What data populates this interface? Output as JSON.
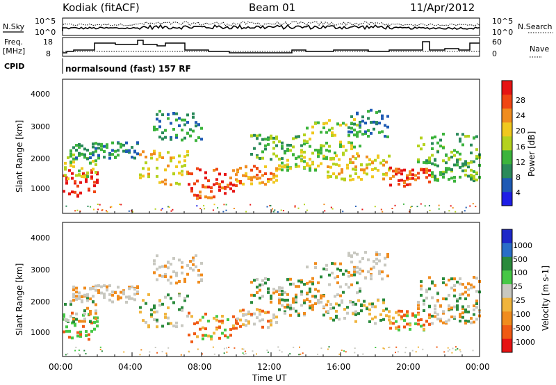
{
  "header": {
    "station": "Kodiak (fitACF)",
    "beam": "Beam 01",
    "date": "11/Apr/2012"
  },
  "noise_panel": {
    "left_label": "N.Sky",
    "right_label": "N.Search",
    "left_ticks": [
      "10^5",
      "10^0"
    ],
    "right_ticks": [
      "10^5",
      "10^0"
    ]
  },
  "freq_panel": {
    "left_label_line1": "Freq.",
    "left_label_line2": "[MHz]",
    "right_label": "Nave",
    "left_ticks": [
      "18",
      "8"
    ],
    "right_ticks": [
      "60",
      "0"
    ]
  },
  "cpid": {
    "label": "CPID",
    "value": "normalsound (fast) 157 RF"
  },
  "chart_data": [
    {
      "type": "heatmap",
      "name": "power",
      "ylabel": "Slant Range [km]",
      "yticks": [
        "4000",
        "3000",
        "2000",
        "1000"
      ],
      "colorbar_label": "Power [dB]",
      "colorbar_ticks": [
        "28",
        "24",
        "20",
        "16",
        "12",
        "8",
        "4"
      ],
      "colors": [
        "#1e1ee6",
        "#1e5ab4",
        "#2a8a5a",
        "#3cb43c",
        "#b4d21e",
        "#f0c81e",
        "#f08c1e",
        "#f04614",
        "#e61414"
      ]
    },
    {
      "type": "heatmap",
      "name": "velocity",
      "ylabel": "Slant Range [km]",
      "yticks": [
        "4000",
        "3000",
        "2000",
        "1000"
      ],
      "colorbar_label": "Velocity [m s-1]",
      "colorbar_ticks": [
        "1000",
        "500",
        "100",
        "25",
        "-25",
        "-100",
        "-500",
        "-1000"
      ],
      "colors": [
        "#1e28c8",
        "#2a6ec8",
        "#2a8a3c",
        "#46c846",
        "#c8c8c0",
        "#f0b43c",
        "#f08c1e",
        "#f05a14",
        "#e61414"
      ]
    }
  ],
  "time_axis": {
    "label": "Time UT",
    "ticks": [
      "00:00",
      "04:00",
      "08:00",
      "12:00",
      "16:00",
      "20:00",
      "00:00"
    ]
  }
}
